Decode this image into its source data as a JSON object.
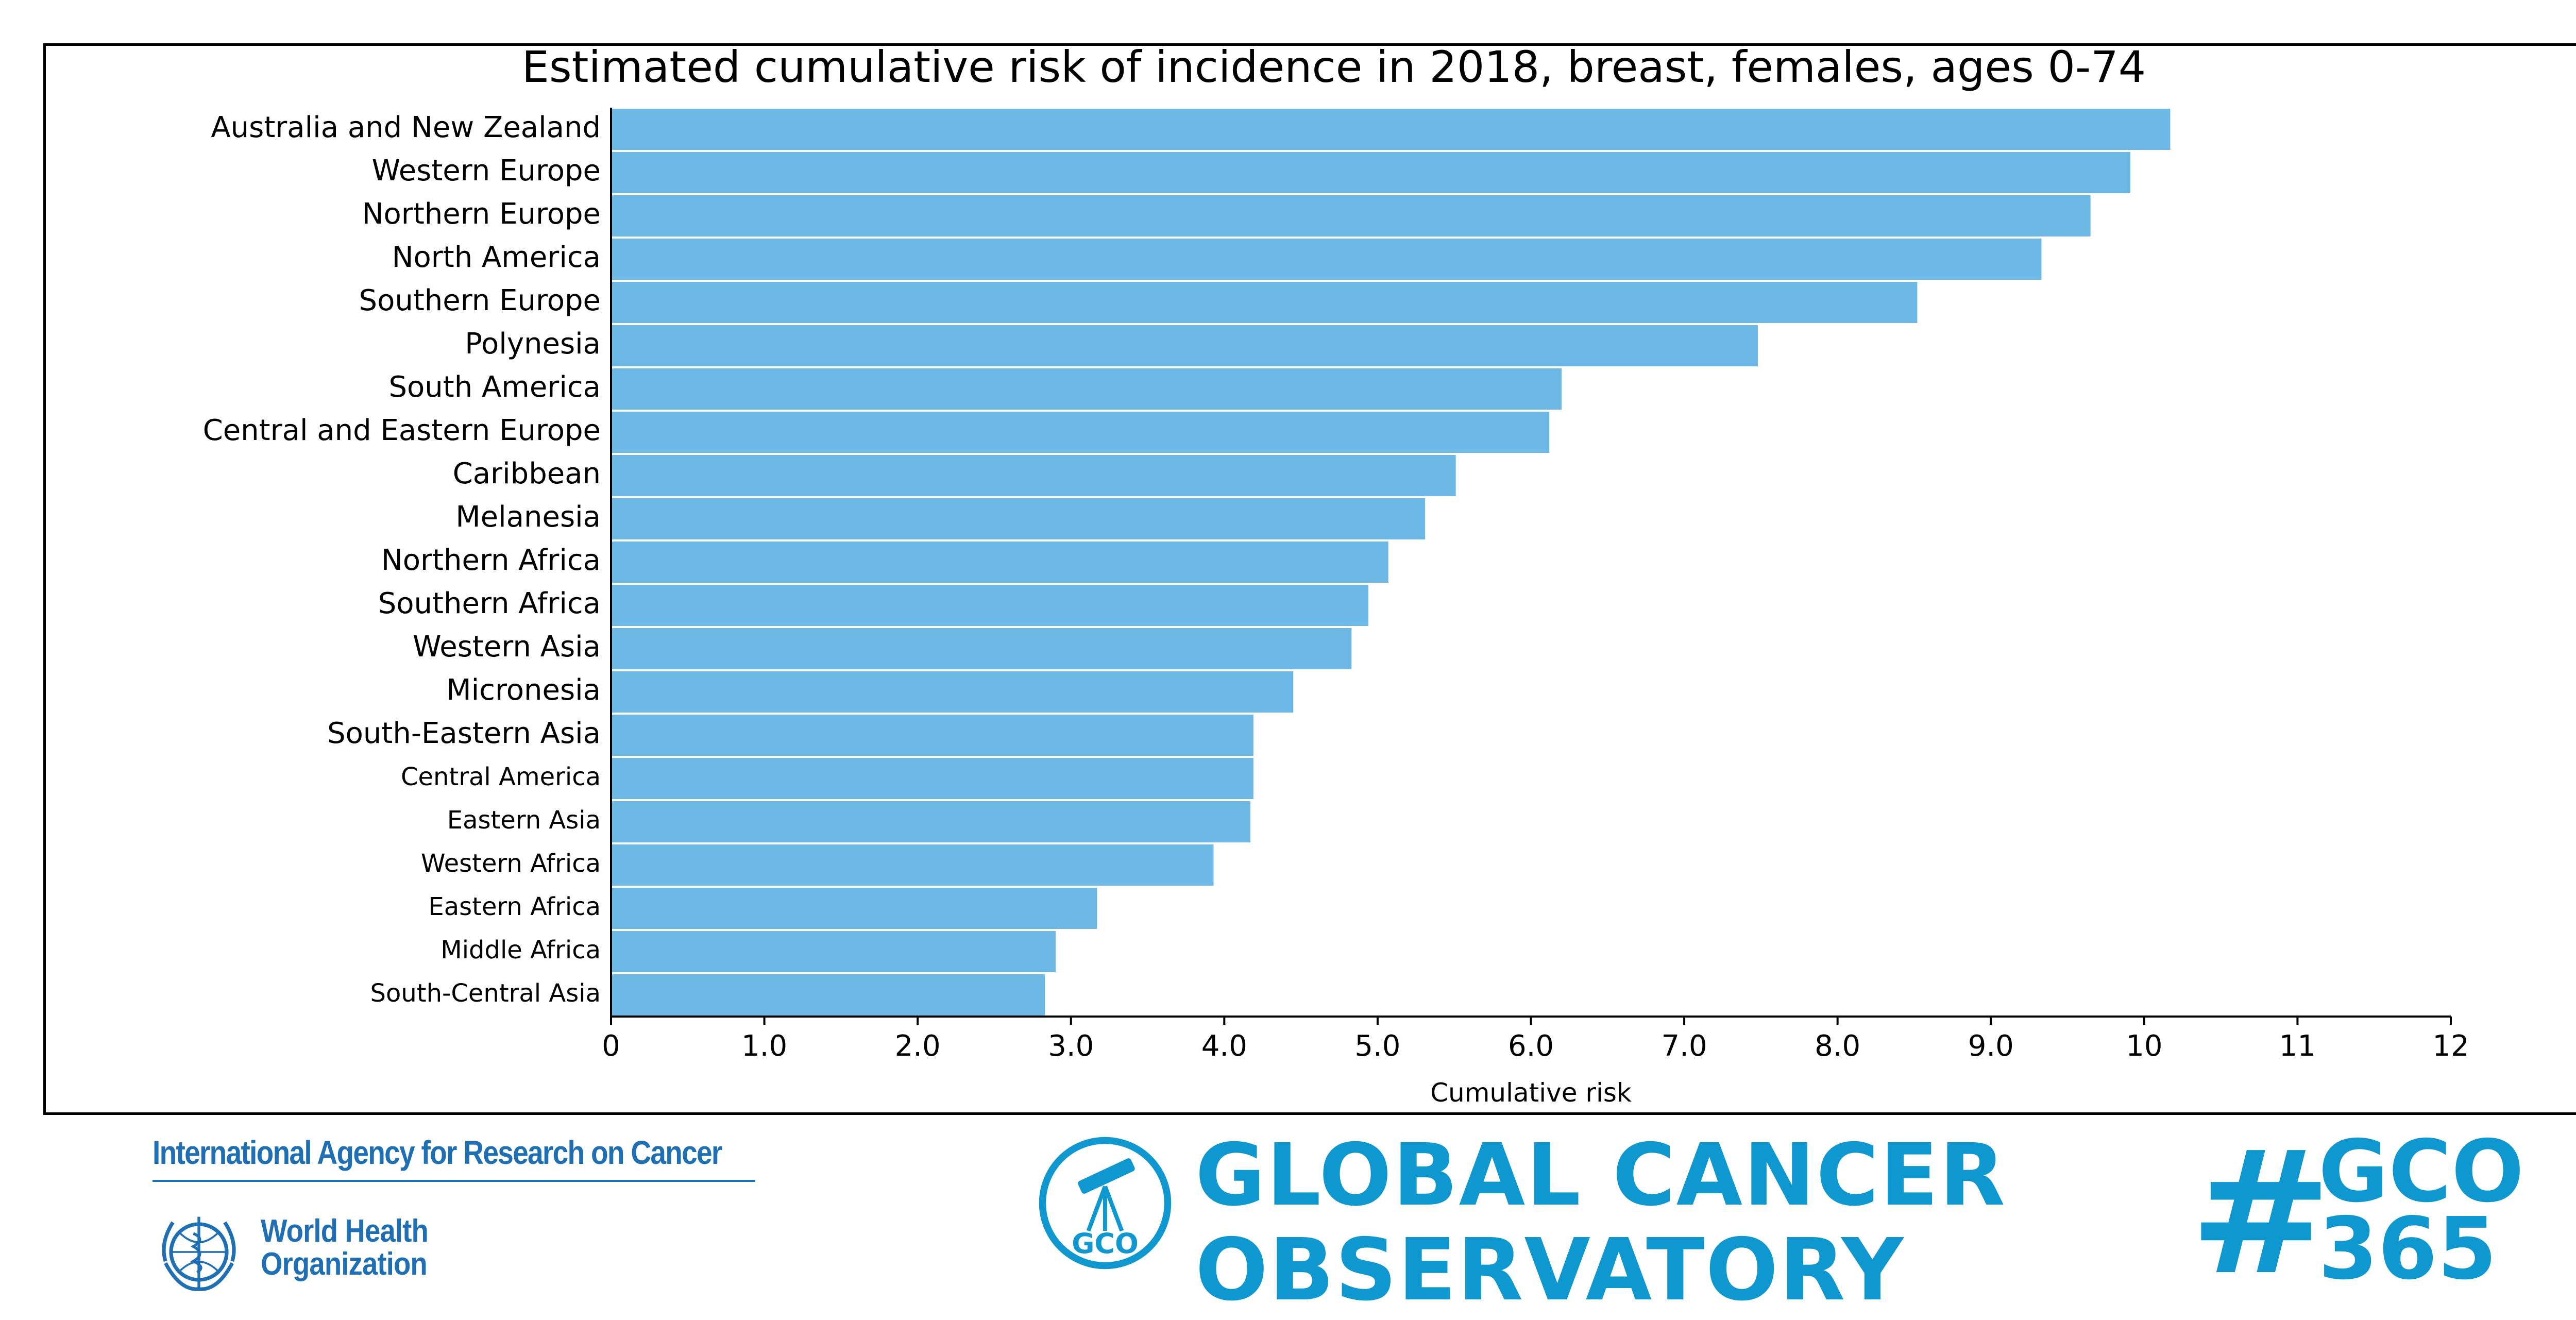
{
  "chart_data": {
    "type": "bar",
    "orientation": "horizontal",
    "title": "Estimated cumulative risk of incidence in 2018, breast, females, ages 0-74",
    "xlabel": "Cumulative risk",
    "ylabel": "",
    "xlim": [
      0,
      12
    ],
    "xticks": [
      "0",
      "1.0",
      "2.0",
      "3.0",
      "4.0",
      "5.0",
      "6.0",
      "7.0",
      "8.0",
      "9.0",
      "10",
      "11",
      "12"
    ],
    "grid": false,
    "bar_color": "#6cb9e6",
    "categories": [
      "Australia and New Zealand",
      "Western Europe",
      "Northern Europe",
      "North America",
      "Southern Europe",
      "Polynesia",
      "South America",
      "Central and Eastern Europe",
      "Caribbean",
      "Melanesia",
      "Northern Africa",
      "Southern Africa",
      "Western Asia",
      "Micronesia",
      "South-Eastern Asia",
      "Central America",
      "Eastern Asia",
      "Western Africa",
      "Eastern Africa",
      "Middle Africa",
      "South-Central Asia"
    ],
    "values": [
      10.17,
      9.91,
      9.65,
      9.33,
      8.52,
      7.48,
      6.2,
      6.12,
      5.51,
      5.31,
      5.07,
      4.94,
      4.83,
      4.45,
      4.19,
      4.19,
      4.17,
      3.93,
      3.17,
      2.9,
      2.83
    ]
  },
  "footer": {
    "iarc_name": "International Agency for Research on Cancer",
    "who_line1": "World Health",
    "who_line2": "Organization",
    "gco_badge": "GCO",
    "gco_line1": "GLOBAL CANCER",
    "gco_line2": "OBSERVATORY",
    "hash_sign": "#",
    "hash_line1": "GCO",
    "hash_line2": "365",
    "brand_color": "#0f98cf",
    "iarc_color": "#1f6fb5"
  }
}
